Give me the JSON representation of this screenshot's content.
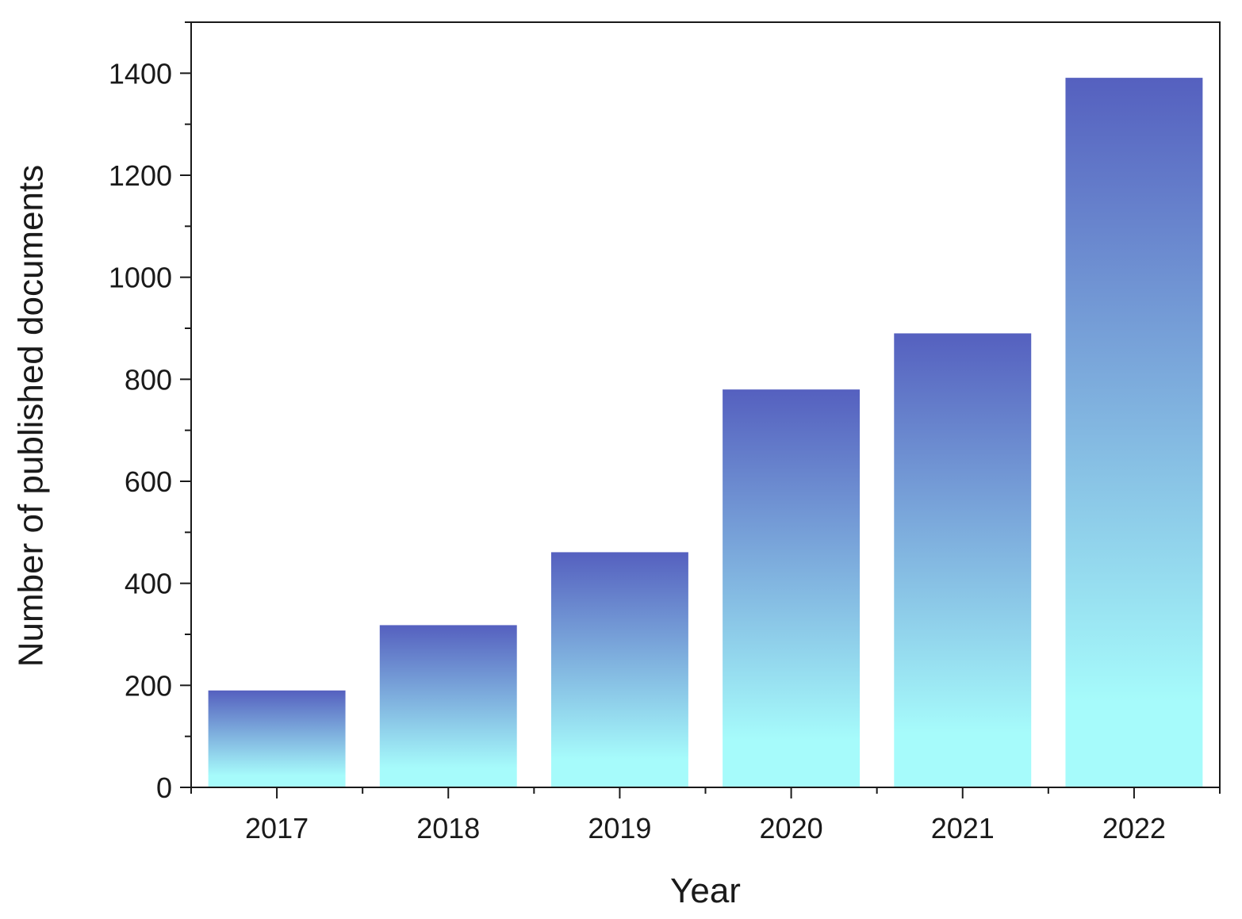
{
  "chart_data": {
    "type": "bar",
    "title": "",
    "xlabel": "Year",
    "ylabel": "Number of published documents",
    "categories": [
      "2017",
      "2018",
      "2019",
      "2020",
      "2021",
      "2022"
    ],
    "values": [
      190,
      318,
      461,
      780,
      890,
      1391
    ],
    "ylim": [
      0,
      1500
    ],
    "yticks": [
      0,
      200,
      400,
      600,
      800,
      1000,
      1200,
      1400
    ],
    "grid": false,
    "legend": "none",
    "bar_gradient": {
      "top_color": "#5560bf",
      "bottom_color": "#a6fbfb"
    },
    "axis_color": "#1a1a1a"
  }
}
